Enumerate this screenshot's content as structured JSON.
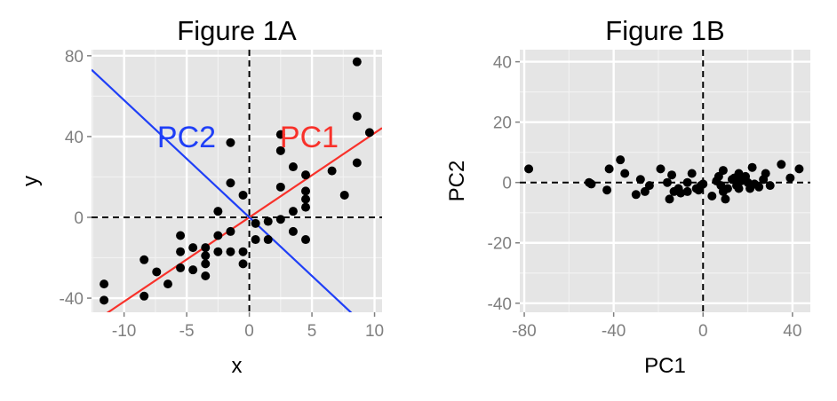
{
  "chart_data": [
    {
      "type": "scatter",
      "title": "Figure 1A",
      "xlabel": "x",
      "ylabel": "y",
      "xlim": [
        -12.6,
        10.6
      ],
      "ylim": [
        -47,
        83
      ],
      "xticks": [
        -10,
        -5,
        0,
        5,
        10
      ],
      "xtick_labels": [
        "-10",
        "-5",
        "0",
        "5",
        "10"
      ],
      "yticks": [
        -40,
        0,
        40,
        80
      ],
      "ytick_labels": [
        "-40",
        "0",
        "40",
        "80"
      ],
      "grid": true,
      "reference_lines": {
        "x": 0,
        "y": 0,
        "style": "dashed"
      },
      "lines": [
        {
          "label": "PC1",
          "color": "#f8312a",
          "slope": 4.17,
          "intercept": 0
        },
        {
          "label": "PC2",
          "color": "#1f3ff7",
          "slope": -5.8,
          "intercept": 0
        }
      ],
      "points": [
        [
          -11.6,
          -33
        ],
        [
          -11.6,
          -41
        ],
        [
          -8.4,
          -21
        ],
        [
          -8.4,
          -39
        ],
        [
          -7.4,
          -27
        ],
        [
          -6.5,
          -33
        ],
        [
          -5.5,
          -9
        ],
        [
          -5.5,
          -17
        ],
        [
          -5.5,
          -25
        ],
        [
          -4.5,
          -15
        ],
        [
          -4.5,
          -26
        ],
        [
          -3.5,
          -15
        ],
        [
          -3.5,
          -19
        ],
        [
          -3.5,
          -23
        ],
        [
          -3.5,
          -29
        ],
        [
          -2.5,
          3
        ],
        [
          -2.5,
          -9
        ],
        [
          -2.5,
          -17
        ],
        [
          -1.5,
          37
        ],
        [
          -1.5,
          17
        ],
        [
          -1.5,
          -7
        ],
        [
          -1.5,
          -17
        ],
        [
          -0.5,
          11
        ],
        [
          -0.5,
          -17
        ],
        [
          -0.5,
          -23
        ],
        [
          0.5,
          -3
        ],
        [
          0.5,
          -11
        ],
        [
          1.5,
          -2
        ],
        [
          1.5,
          -11
        ],
        [
          2.5,
          41
        ],
        [
          2.5,
          33
        ],
        [
          2.5,
          15
        ],
        [
          2.5,
          -1
        ],
        [
          3.5,
          25
        ],
        [
          3.5,
          3
        ],
        [
          3.5,
          -7
        ],
        [
          4.5,
          21
        ],
        [
          4.5,
          13
        ],
        [
          4.5,
          9
        ],
        [
          4.5,
          5
        ],
        [
          4.5,
          -11
        ],
        [
          6.6,
          23
        ],
        [
          7.6,
          11
        ],
        [
          8.6,
          77
        ],
        [
          8.6,
          50
        ],
        [
          8.6,
          27
        ],
        [
          9.6,
          42
        ]
      ]
    },
    {
      "type": "scatter",
      "title": "Figure 1B",
      "xlabel": "PC1",
      "ylabel": "PC2",
      "xlim": [
        -82,
        48
      ],
      "ylim": [
        -43,
        44
      ],
      "xticks": [
        -80,
        -40,
        0,
        40
      ],
      "xtick_labels": [
        "-80",
        "-40",
        "0",
        "40"
      ],
      "yticks": [
        -40,
        -20,
        0,
        20,
        40
      ],
      "ytick_labels": [
        "-40",
        "-20",
        "0",
        "20",
        "40"
      ],
      "grid": true,
      "reference_lines": {
        "x": 0,
        "y": 0,
        "style": "dashed"
      },
      "points": [
        [
          -78,
          4.5
        ],
        [
          -51,
          0
        ],
        [
          -50,
          -0.5
        ],
        [
          -42,
          4.5
        ],
        [
          -43,
          -2.5
        ],
        [
          -37,
          7.5
        ],
        [
          -35,
          3
        ],
        [
          -30,
          -4
        ],
        [
          -28,
          1
        ],
        [
          -26,
          -3
        ],
        [
          -24,
          -1
        ],
        [
          -19,
          4.5
        ],
        [
          -16,
          0
        ],
        [
          -15,
          -5.5
        ],
        [
          -14,
          2.5
        ],
        [
          -13,
          -3
        ],
        [
          -11,
          -2
        ],
        [
          -10,
          -3.5
        ],
        [
          -7,
          0
        ],
        [
          -7,
          -3
        ],
        [
          -5,
          3
        ],
        [
          -3,
          -2
        ],
        [
          -2,
          -2.5
        ],
        [
          -1,
          -1
        ],
        [
          0,
          -0.5
        ],
        [
          4,
          -4.5
        ],
        [
          6,
          0.5
        ],
        [
          7,
          2
        ],
        [
          8,
          -1
        ],
        [
          9,
          4
        ],
        [
          9,
          -3
        ],
        [
          10,
          -5.5
        ],
        [
          11,
          -2
        ],
        [
          13,
          1
        ],
        [
          14,
          1.5
        ],
        [
          15,
          -1
        ],
        [
          16,
          3
        ],
        [
          16,
          -2
        ],
        [
          17,
          0.5
        ],
        [
          19,
          2
        ],
        [
          20,
          0
        ],
        [
          21,
          -2
        ],
        [
          22,
          5
        ],
        [
          23,
          -0.5
        ],
        [
          25,
          -1.5
        ],
        [
          27,
          1
        ],
        [
          28,
          3
        ],
        [
          30,
          -1
        ],
        [
          35,
          6
        ],
        [
          39,
          1.5
        ],
        [
          43,
          4.5
        ]
      ]
    }
  ]
}
